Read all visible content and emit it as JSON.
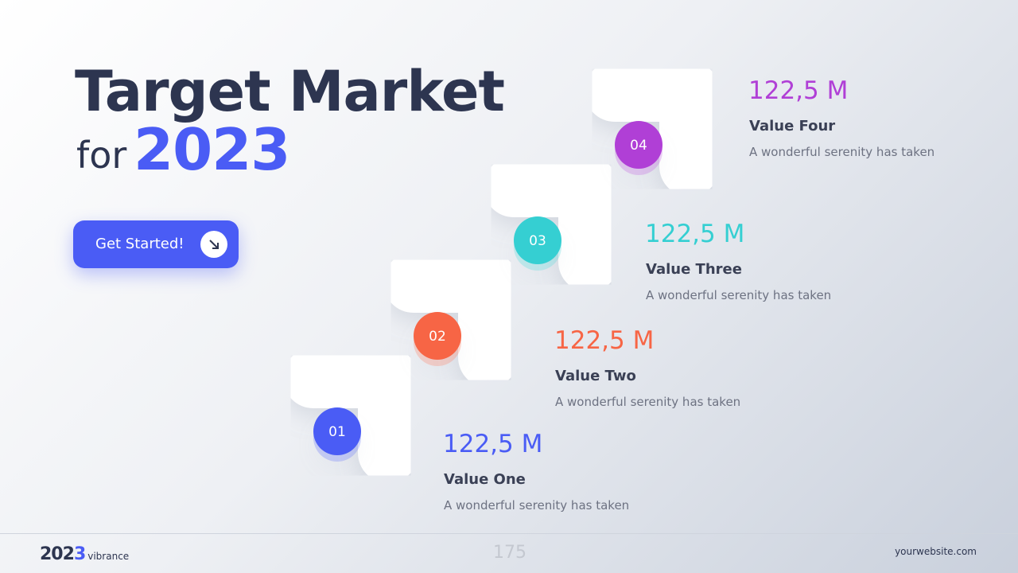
{
  "header": {
    "title": "Target Market",
    "prefix": "for",
    "year": "2023"
  },
  "button": {
    "label": "Get Started!"
  },
  "steps": [
    {
      "number": "01",
      "value": "122,5 M",
      "label": "Value One",
      "description": "A wonderful serenity has taken",
      "color": "#4a5cf5"
    },
    {
      "number": "02",
      "value": "122,5 M",
      "label": "Value Two",
      "description": "A wonderful serenity has taken",
      "color": "#f76545"
    },
    {
      "number": "03",
      "value": "122,5 M",
      "label": "Value Three",
      "description": "A wonderful serenity has taken",
      "color": "#35cfd2"
    },
    {
      "number": "04",
      "value": "122,5 M",
      "label": "Value Four",
      "description": "A wonderful serenity has taken",
      "color": "#b03fd6"
    }
  ],
  "footer": {
    "logo_main": "202",
    "logo_accent": "3",
    "logo_suffix": "vibrance",
    "page": "175",
    "website": "yourwebsite.com"
  }
}
